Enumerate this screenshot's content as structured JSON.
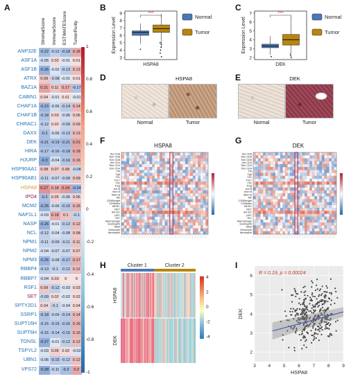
{
  "panel_labels": {
    "a": "A",
    "b": "B",
    "c": "C",
    "d": "D",
    "e": "E",
    "f": "F",
    "g": "G",
    "h": "H",
    "i": "I"
  },
  "panelA": {
    "columns": [
      "StromalScore",
      "ImmuneScore",
      "ESTIMATEScore",
      "TumorPurity"
    ],
    "colorbar_ticks": [
      "1",
      "0.8",
      "0.6",
      "0.4",
      "0.2",
      "0",
      "-0.2",
      "-0.4",
      "-0.6",
      "-0.8",
      "-1"
    ],
    "rows": [
      {
        "gene": "ANP32E",
        "color": "#1f6fb4",
        "vals": [
          "-0.22",
          "-0.12",
          "-0.18",
          "0.18"
        ]
      },
      {
        "gene": "ASF1A",
        "color": "#1f6fb4",
        "vals": [
          "-0.05",
          "0.02",
          "-0.01",
          "0.01"
        ]
      },
      {
        "gene": "ASF1B",
        "color": "#1f6fb4",
        "vals": [
          "-0.26",
          "-0.02",
          "-0.13",
          "0.13"
        ]
      },
      {
        "gene": "ATRX",
        "color": "#1f6fb4",
        "vals": [
          "0.09",
          "-0.08",
          "-0.01",
          "0.01"
        ]
      },
      {
        "gene": "BAZ1A",
        "color": "#1f6fb4",
        "vals": [
          "0.21",
          "0.11",
          "0.17",
          "-0.17"
        ]
      },
      {
        "gene": "CABIN1",
        "color": "#1f6fb4",
        "vals": [
          "0.04",
          "-0.01",
          "0.01",
          "-0.01"
        ]
      },
      {
        "gene": "CHAF1A",
        "color": "#1f6fb4",
        "vals": [
          "-0.23",
          "-0.06",
          "-0.14",
          "0.14"
        ]
      },
      {
        "gene": "CHAF1B",
        "color": "#1f6fb4",
        "vals": [
          "-0.18",
          "0.03",
          "-0.06",
          "0.06"
        ]
      },
      {
        "gene": "CHRAC1",
        "color": "#1f6fb4",
        "vals": [
          "-0.12",
          "0.02",
          "-0.09",
          "0.09"
        ]
      },
      {
        "gene": "DAXX",
        "color": "#1f6fb4",
        "vals": [
          "-0.2",
          "-0.06",
          "-0.13",
          "0.13"
        ]
      },
      {
        "gene": "DEK",
        "color": "#1f6fb4",
        "vals": [
          "-0.21",
          "-0.19",
          "-0.21",
          "0.21"
        ]
      },
      {
        "gene": "HIRA",
        "color": "#1f6fb4",
        "vals": [
          "-0.17",
          "-0.16",
          "-0.18",
          "0.18"
        ]
      },
      {
        "gene": "HJURP",
        "color": "#1f6fb4",
        "vals": [
          "-0.3",
          "-0.04",
          "-0.16",
          "0.16"
        ]
      },
      {
        "gene": "HSP90AA1",
        "color": "#1f6fb4",
        "vals": [
          "0.08",
          "0.07",
          "0.08",
          "-0.08"
        ]
      },
      {
        "gene": "HSP90AB1",
        "color": "#1f6fb4",
        "vals": [
          "-0.11",
          "-0.07",
          "-0.09",
          "0.09"
        ]
      },
      {
        "gene": "HSPA8",
        "color": "#c9a227",
        "vals": [
          "0.27",
          "0.18",
          "0.24",
          "-0.24"
        ]
      },
      {
        "gene": "IPO4",
        "color": "#8e1b4d",
        "vals": [
          "-0.2",
          "0.05",
          "-0.06",
          "0.06"
        ]
      },
      {
        "gene": "MCM2",
        "color": "#1f6fb4",
        "vals": [
          "-0.25",
          "-0.06",
          "-0.15",
          "0.15"
        ]
      },
      {
        "gene": "NAP1L1",
        "color": "#1f6fb4",
        "vals": [
          "-0.03",
          "0.18",
          "0.1",
          "-0.1"
        ]
      },
      {
        "gene": "NASP",
        "color": "#1f6fb4",
        "vals": [
          "-0.26",
          "-0.01",
          "-0.12",
          "0.12"
        ]
      },
      {
        "gene": "NCL",
        "color": "#1f6fb4",
        "vals": [
          "-0.12",
          "-0.04",
          "-0.08",
          "0.08"
        ]
      },
      {
        "gene": "NPM1",
        "color": "#1f6fb4",
        "vals": [
          "-0.11",
          "-0.09",
          "-0.11",
          "0.11"
        ]
      },
      {
        "gene": "NPM2",
        "color": "#1f6fb4",
        "vals": [
          "-0.04",
          "-0.07",
          "-0.07",
          "0.07"
        ]
      },
      {
        "gene": "NPM3",
        "color": "#1f6fb4",
        "vals": [
          "-0.25",
          "-0.08",
          "-0.17",
          "0.17"
        ]
      },
      {
        "gene": "RBBP4",
        "color": "#1f6fb4",
        "vals": [
          "-0.13",
          "-0.1",
          "-0.12",
          "0.12"
        ]
      },
      {
        "gene": "RBBP7",
        "color": "#1f6fb4",
        "vals": [
          "-0.04",
          "0.03",
          "0",
          "0"
        ]
      },
      {
        "gene": "RSF1",
        "color": "#1f6fb4",
        "vals": [
          "0.09",
          "-0.12",
          "-0.03",
          "0.03"
        ]
      },
      {
        "gene": "SET",
        "color": "#8e1b4d",
        "vals": [
          "-0.09",
          "0.02",
          "-0.02",
          "0.02"
        ]
      },
      {
        "gene": "SPTY2D1",
        "color": "#1f6fb4",
        "vals": [
          "0.04",
          "-0.1",
          "-0.04",
          "0.04"
        ]
      },
      {
        "gene": "SSRP1",
        "color": "#1f6fb4",
        "vals": [
          "-0.18",
          "-0.09",
          "-0.14",
          "0.14"
        ]
      },
      {
        "gene": "SUPT16H",
        "color": "#1f6fb4",
        "vals": [
          "-0.15",
          "-0.15",
          "-0.16",
          "0.16"
        ]
      },
      {
        "gene": "SUPT6H",
        "color": "#1f6fb4",
        "vals": [
          "-0.15",
          "-0.14",
          "-0.15",
          "0.15"
        ]
      },
      {
        "gene": "TONSL",
        "color": "#1f6fb4",
        "vals": [
          "-0.27",
          "-0.01",
          "-0.12",
          "0.12"
        ]
      },
      {
        "gene": "TSPYL2",
        "color": "#1f6fb4",
        "vals": [
          "-0.03",
          "0.06",
          "0.02",
          "-0.02"
        ]
      },
      {
        "gene": "UBN1",
        "color": "#1f6fb4",
        "vals": [
          "-0.06",
          "-0.15",
          "-0.12",
          "0.12"
        ]
      },
      {
        "gene": "VPS72",
        "color": "#1f6fb4",
        "vals": [
          "-0.28",
          "-0.11",
          "-0.2",
          "0.2"
        ]
      }
    ]
  },
  "panelB": {
    "gene": "HSPA8",
    "ylabel": "Expression Level",
    "yticks": [
      "3",
      "4",
      "5",
      "6",
      "7",
      "8",
      "9"
    ],
    "sig": "***",
    "legend": [
      {
        "label": "Normal",
        "color": "#4a78b5"
      },
      {
        "label": "Tumor",
        "color": "#b8860b"
      }
    ]
  },
  "panelC": {
    "gene": "DEK",
    "ylabel": "Expression Level",
    "yticks": [
      "2",
      "3",
      "4",
      "5",
      "6",
      "7"
    ],
    "sig": "***",
    "legend": [
      {
        "label": "Normal",
        "color": "#4a78b5"
      },
      {
        "label": "Tumor",
        "color": "#b8860b"
      }
    ]
  },
  "panelD": {
    "title": "HSPA8",
    "left": "Normal",
    "right": "Tumor"
  },
  "panelE": {
    "title": "DEK",
    "left": "Normal",
    "right": "Tumor"
  },
  "panelF": {
    "title": "HSPA8"
  },
  "panelG": {
    "title": "DEK"
  },
  "immune_rows": [
    "Act CD8",
    "Tem CD8",
    "Tcm CD8",
    "Act CD4",
    "Tem CD4",
    "Tcm CD4",
    "Tfh",
    "Tgd",
    "Th1",
    "Th17",
    "Th2",
    "Treg",
    "Act B",
    "Imm B",
    "Mem B",
    "NK",
    "CD56bright",
    "CD56dim",
    "MDSC",
    "NKT",
    "Act DC",
    "pDC",
    "iDC",
    "Macrophage",
    "Eosinophil",
    "Mast",
    "Monocyte",
    "Neutrophil"
  ],
  "panelH": {
    "cluster1": "Cluster 1",
    "cluster2": "Cluster 2",
    "row1": "HSPA8",
    "row2": "DEK",
    "scale_ticks": [
      "4",
      "2",
      "0",
      "-2",
      "-4"
    ]
  },
  "chart_data": {
    "type": "scatter",
    "xlabel": "HSPA8",
    "ylabel": "DEK",
    "annotation": "R = 0.19, p = 0.00024",
    "xlim": [
      3,
      9
    ],
    "ylim": [
      1.5,
      6.5
    ],
    "xticks": [
      "3",
      "4",
      "5",
      "6",
      "7",
      "8",
      "9"
    ],
    "yticks": [
      "2",
      "3",
      "4",
      "5",
      "6"
    ],
    "regression": {
      "x": [
        4.2,
        9.0
      ],
      "y": [
        3.1,
        4.1
      ]
    },
    "points_color": "#444444",
    "line_color": "#4a5fc1"
  }
}
